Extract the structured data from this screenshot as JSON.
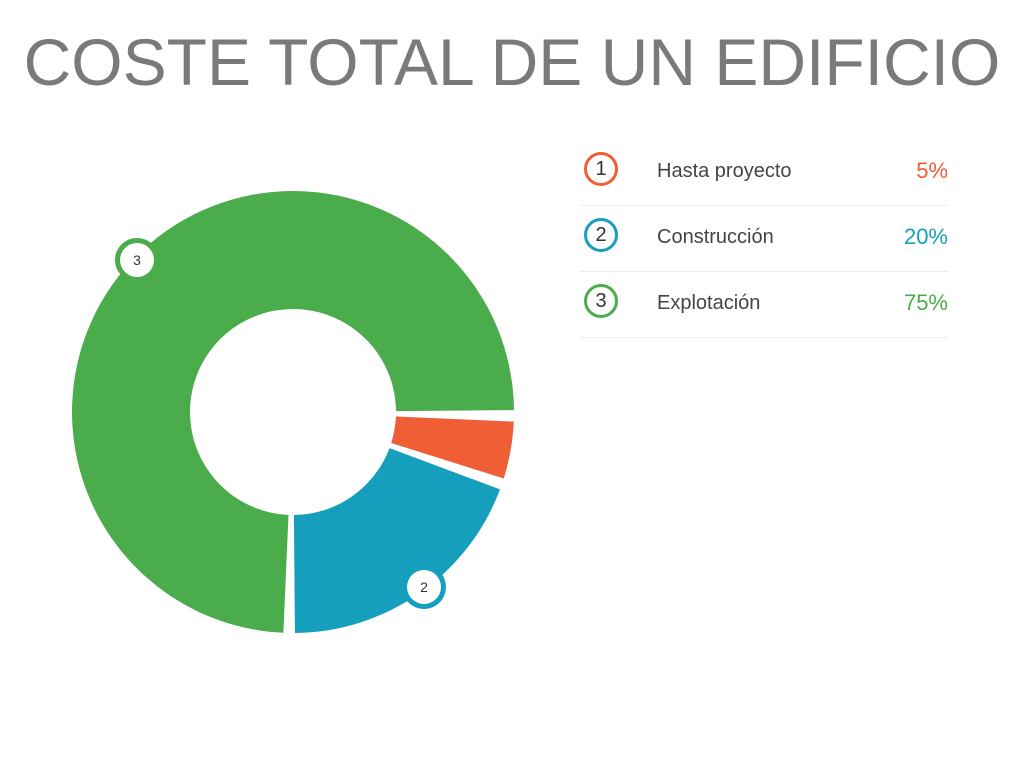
{
  "title": "COSTE TOTAL DE UN EDIFICIO",
  "chart_data": {
    "type": "pie",
    "variant": "donut",
    "categories": [
      "Hasta proyecto",
      "Construcción",
      "Explotación"
    ],
    "values": [
      5,
      20,
      75
    ],
    "value_labels": [
      "5%",
      "20%",
      "75%"
    ],
    "markers": [
      "1",
      "2",
      "3"
    ],
    "colors": [
      "#f05e35",
      "#159fbd",
      "#4bac4b"
    ],
    "legend_position": "right"
  }
}
